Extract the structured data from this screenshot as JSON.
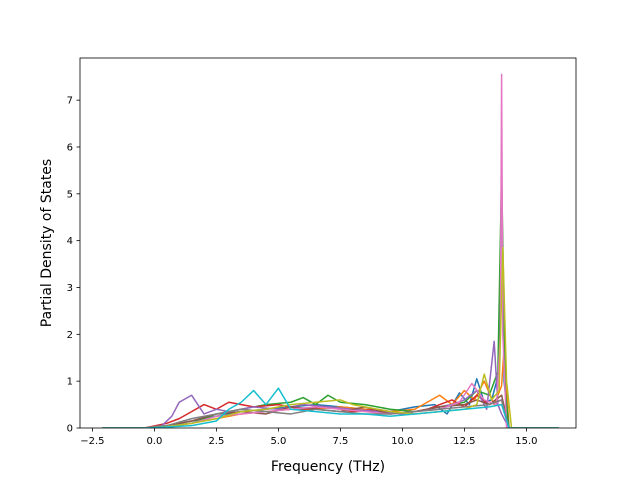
{
  "chart_data": {
    "type": "line",
    "title": "",
    "xlabel": "Frequency (THz)",
    "ylabel": "Partial Density of States",
    "xlim": [
      -3.0,
      17.0
    ],
    "ylim": [
      0.0,
      7.9
    ],
    "xticks": [
      -2.5,
      0.0,
      2.5,
      5.0,
      7.5,
      10.0,
      12.5,
      15.0
    ],
    "xtick_labels": [
      "−2.5",
      "0.0",
      "2.5",
      "5.0",
      "7.5",
      "10.0",
      "12.5",
      "15.0"
    ],
    "yticks": [
      0,
      1,
      2,
      3,
      4,
      5,
      6,
      7
    ],
    "ytick_labels": [
      "0",
      "1",
      "2",
      "3",
      "4",
      "5",
      "6",
      "7"
    ],
    "grid": false,
    "legend": "none",
    "series": [
      {
        "color": "#1f77b4",
        "x": [
          -2.1,
          -0.4,
          0.5,
          1.5,
          2.5,
          3.5,
          4.5,
          5.5,
          6.5,
          7.5,
          8.5,
          9.5,
          10.5,
          11.3,
          11.8,
          12.3,
          12.7,
          13.0,
          13.3,
          13.6,
          13.9,
          14.0,
          14.1,
          14.3,
          16.3
        ],
        "y": [
          0,
          0,
          0.05,
          0.15,
          0.25,
          0.35,
          0.4,
          0.45,
          0.5,
          0.45,
          0.4,
          0.35,
          0.45,
          0.5,
          0.3,
          0.75,
          0.5,
          1.05,
          0.55,
          0.6,
          1.2,
          5.4,
          1.0,
          0,
          0
        ]
      },
      {
        "color": "#ff7f0e",
        "x": [
          -2.1,
          -0.4,
          0.5,
          1.5,
          2.5,
          3.5,
          4.5,
          5.5,
          6.5,
          7.5,
          8.5,
          9.5,
          10.5,
          11.5,
          12.0,
          12.5,
          12.9,
          13.3,
          13.7,
          14.0,
          14.1,
          14.3,
          16.3
        ],
        "y": [
          0,
          0,
          0.03,
          0.1,
          0.2,
          0.3,
          0.35,
          0.4,
          0.4,
          0.45,
          0.4,
          0.35,
          0.4,
          0.7,
          0.5,
          0.8,
          0.6,
          1.0,
          0.5,
          0.9,
          1.7,
          0,
          0
        ]
      },
      {
        "color": "#2ca02c",
        "x": [
          -2.1,
          -0.4,
          0.5,
          1.5,
          2.5,
          3.5,
          4.5,
          5.5,
          6.0,
          6.5,
          7.0,
          7.5,
          8.5,
          9.5,
          10.5,
          11.5,
          12.5,
          13.0,
          13.5,
          13.85,
          14.0,
          14.15,
          14.3,
          16.3
        ],
        "y": [
          0,
          0,
          0.05,
          0.1,
          0.3,
          0.4,
          0.5,
          0.55,
          0.65,
          0.5,
          0.7,
          0.55,
          0.5,
          0.4,
          0.35,
          0.45,
          0.55,
          0.8,
          0.7,
          1.2,
          5.45,
          0.8,
          0,
          0
        ]
      },
      {
        "color": "#d62728",
        "x": [
          -2.1,
          -0.4,
          0.5,
          1.0,
          1.5,
          2.0,
          2.5,
          3.0,
          4.0,
          5.0,
          6.0,
          7.0,
          8.0,
          9.0,
          10.0,
          11.0,
          12.0,
          12.5,
          13.0,
          13.5,
          14.0,
          14.3,
          16.3
        ],
        "y": [
          0,
          0,
          0.1,
          0.2,
          0.35,
          0.5,
          0.4,
          0.55,
          0.45,
          0.5,
          0.4,
          0.45,
          0.35,
          0.4,
          0.3,
          0.4,
          0.6,
          0.45,
          0.7,
          0.5,
          0.6,
          0,
          0
        ]
      },
      {
        "color": "#9467bd",
        "x": [
          -2.1,
          -0.4,
          0.3,
          0.7,
          1.0,
          1.5,
          2.0,
          2.5,
          3.0,
          4.0,
          5.0,
          6.0,
          7.0,
          8.0,
          9.0,
          10.0,
          11.0,
          12.0,
          12.5,
          13.0,
          13.4,
          13.7,
          13.85,
          14.0,
          14.3,
          16.3
        ],
        "y": [
          0,
          0,
          0.05,
          0.25,
          0.55,
          0.7,
          0.3,
          0.4,
          0.35,
          0.45,
          0.4,
          0.5,
          0.45,
          0.4,
          0.35,
          0.3,
          0.4,
          0.5,
          0.6,
          0.8,
          0.4,
          1.85,
          0.5,
          0.3,
          0,
          0
        ]
      },
      {
        "color": "#8c564b",
        "x": [
          -2.1,
          -0.4,
          0.5,
          1.5,
          2.5,
          3.5,
          4.5,
          5.5,
          6.5,
          7.5,
          8.5,
          9.5,
          10.5,
          11.5,
          12.5,
          13.0,
          13.5,
          14.0,
          14.3,
          16.3
        ],
        "y": [
          0,
          0,
          0.05,
          0.15,
          0.3,
          0.35,
          0.3,
          0.45,
          0.4,
          0.35,
          0.45,
          0.3,
          0.35,
          0.45,
          0.5,
          0.6,
          0.5,
          0.7,
          0,
          0
        ]
      },
      {
        "color": "#e377c2",
        "x": [
          -2.1,
          -0.4,
          0.5,
          1.5,
          2.5,
          3.5,
          4.5,
          5.5,
          6.5,
          7.5,
          8.5,
          9.5,
          10.5,
          11.5,
          12.3,
          12.8,
          13.3,
          13.8,
          13.95,
          14.0,
          14.05,
          14.2,
          16.3
        ],
        "y": [
          0,
          0,
          0.03,
          0.1,
          0.25,
          0.3,
          0.35,
          0.4,
          0.45,
          0.4,
          0.35,
          0.3,
          0.35,
          0.4,
          0.55,
          0.95,
          0.6,
          0.5,
          2.0,
          7.55,
          2.0,
          0,
          0
        ]
      },
      {
        "color": "#7f7f7f",
        "x": [
          -2.1,
          -0.4,
          0.5,
          1.5,
          2.5,
          3.5,
          4.5,
          5.5,
          6.5,
          7.5,
          8.5,
          9.5,
          10.5,
          11.5,
          12.5,
          13.5,
          14.0,
          14.3,
          16.3
        ],
        "y": [
          0,
          0,
          0.05,
          0.2,
          0.3,
          0.4,
          0.35,
          0.3,
          0.4,
          0.35,
          0.3,
          0.3,
          0.35,
          0.4,
          0.45,
          0.5,
          0.6,
          0,
          0
        ]
      },
      {
        "color": "#bcbd22",
        "x": [
          -2.1,
          -0.4,
          0.5,
          1.5,
          2.5,
          3.5,
          4.5,
          5.5,
          6.5,
          7.5,
          8.0,
          8.5,
          9.5,
          10.5,
          11.5,
          12.5,
          13.0,
          13.3,
          13.6,
          13.9,
          14.05,
          14.2,
          14.4,
          16.3
        ],
        "y": [
          0,
          0,
          0.03,
          0.1,
          0.2,
          0.35,
          0.4,
          0.5,
          0.55,
          0.6,
          0.5,
          0.45,
          0.35,
          0.3,
          0.35,
          0.4,
          0.5,
          1.15,
          0.6,
          0.8,
          3.85,
          1.0,
          0,
          0
        ]
      },
      {
        "color": "#17becf",
        "x": [
          -2.1,
          -0.4,
          0.5,
          1.5,
          2.5,
          3.0,
          3.5,
          4.0,
          4.5,
          5.0,
          5.5,
          6.5,
          7.5,
          8.5,
          9.5,
          10.5,
          11.5,
          12.5,
          13.5,
          14.0,
          14.3,
          16.3
        ],
        "y": [
          0,
          0,
          0.02,
          0.05,
          0.15,
          0.4,
          0.55,
          0.8,
          0.5,
          0.85,
          0.4,
          0.35,
          0.3,
          0.3,
          0.25,
          0.3,
          0.35,
          0.4,
          0.45,
          0.5,
          0,
          0
        ]
      }
    ]
  }
}
